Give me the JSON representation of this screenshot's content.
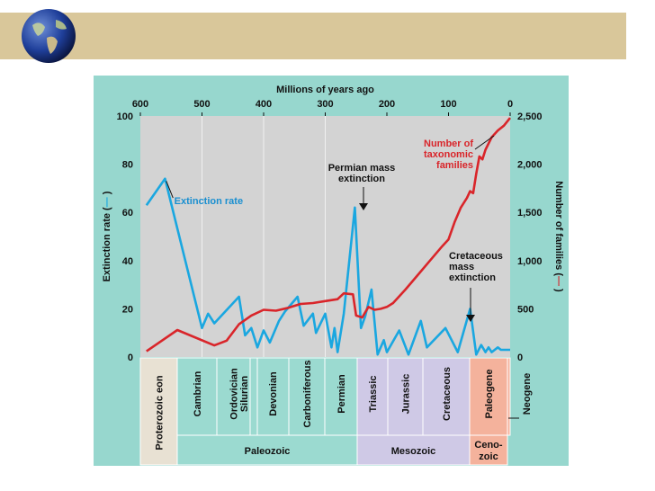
{
  "chart_data": {
    "type": "line",
    "title": "Millions of years ago",
    "x_ticks": [
      600,
      500,
      400,
      300,
      200,
      100,
      0
    ],
    "x_range": [
      600,
      0
    ],
    "ylabel_left": "Extinction rate (",
    "ylabel_right": "Number of families (",
    "ylabel_close": ")",
    "y_left_ticks": [
      100,
      80,
      60,
      40,
      20,
      0
    ],
    "y_left_range": [
      0,
      100
    ],
    "y_right_ticks": [
      "2,500",
      "2,000",
      "1,500",
      "1,000",
      "500",
      "0"
    ],
    "y_right_values": [
      2500,
      2000,
      1500,
      1000,
      500,
      0
    ],
    "y_right_range": [
      0,
      2500
    ],
    "grid": "vertical at 500, 400, 300",
    "colors": {
      "extinction": "#1aa7e0",
      "families": "#d9252a",
      "plot_bg": "#d3d3d3",
      "frame": "#97d7ce",
      "paleozoic": "#9bdad0",
      "mesozoic": "#cfc9e6",
      "cenozoic": "#f4b29c",
      "proterozoic": "#e8e1d3"
    },
    "series": [
      {
        "key": "extinction",
        "name": "Extinction rate",
        "axis": "left",
        "points": [
          [
            590,
            63
          ],
          [
            560,
            74
          ],
          [
            500,
            12
          ],
          [
            490,
            18
          ],
          [
            480,
            14
          ],
          [
            440,
            25
          ],
          [
            430,
            9
          ],
          [
            420,
            12
          ],
          [
            410,
            4
          ],
          [
            400,
            11
          ],
          [
            390,
            6
          ],
          [
            375,
            15
          ],
          [
            365,
            19
          ],
          [
            345,
            25
          ],
          [
            335,
            13
          ],
          [
            320,
            18
          ],
          [
            315,
            10
          ],
          [
            300,
            18
          ],
          [
            290,
            4
          ],
          [
            285,
            12
          ],
          [
            280,
            2
          ],
          [
            270,
            18
          ],
          [
            252,
            62
          ],
          [
            242,
            12
          ],
          [
            235,
            17
          ],
          [
            225,
            28
          ],
          [
            215,
            1
          ],
          [
            205,
            7
          ],
          [
            200,
            2
          ],
          [
            180,
            11
          ],
          [
            165,
            1
          ],
          [
            145,
            15
          ],
          [
            135,
            4
          ],
          [
            105,
            12
          ],
          [
            85,
            2
          ],
          [
            65,
            20
          ],
          [
            55,
            1
          ],
          [
            47,
            5
          ],
          [
            40,
            2
          ],
          [
            35,
            4
          ],
          [
            30,
            2
          ],
          [
            20,
            4
          ],
          [
            15,
            3
          ],
          [
            0,
            3
          ]
        ]
      },
      {
        "key": "families",
        "name": "Number of taxonomic families",
        "axis": "right",
        "points": [
          [
            590,
            60
          ],
          [
            540,
            280
          ],
          [
            480,
            120
          ],
          [
            460,
            170
          ],
          [
            440,
            340
          ],
          [
            420,
            430
          ],
          [
            400,
            490
          ],
          [
            380,
            480
          ],
          [
            360,
            510
          ],
          [
            340,
            550
          ],
          [
            320,
            560
          ],
          [
            300,
            580
          ],
          [
            280,
            600
          ],
          [
            270,
            660
          ],
          [
            255,
            650
          ],
          [
            250,
            430
          ],
          [
            240,
            410
          ],
          [
            230,
            520
          ],
          [
            220,
            490
          ],
          [
            210,
            500
          ],
          [
            200,
            520
          ],
          [
            190,
            560
          ],
          [
            170,
            700
          ],
          [
            150,
            850
          ],
          [
            130,
            1000
          ],
          [
            110,
            1150
          ],
          [
            100,
            1220
          ],
          [
            90,
            1400
          ],
          [
            80,
            1550
          ],
          [
            70,
            1650
          ],
          [
            65,
            1720
          ],
          [
            60,
            1700
          ],
          [
            55,
            1900
          ],
          [
            50,
            2080
          ],
          [
            45,
            2050
          ],
          [
            40,
            2150
          ],
          [
            30,
            2280
          ],
          [
            20,
            2350
          ],
          [
            10,
            2400
          ],
          [
            0,
            2480
          ]
        ]
      }
    ],
    "annotations": {
      "extinction_rate": "Extinction rate",
      "families_lines": [
        "Number of",
        "taxonomic",
        "families"
      ],
      "permian_lines": [
        "Permian mass",
        "extinction"
      ],
      "cretaceous_lines": [
        "Cretaceous",
        "mass",
        "extinction"
      ]
    },
    "periods": [
      {
        "label": "Proterozoic eon",
        "era": "proterozoic"
      },
      {
        "label": "Cambrian",
        "era": "paleozoic"
      },
      {
        "label": "Ordovician",
        "era": "paleozoic"
      },
      {
        "label": "Silurian",
        "era": "paleozoic"
      },
      {
        "label": "Devonian",
        "era": "paleozoic"
      },
      {
        "label": "Carboniferous",
        "era": "paleozoic"
      },
      {
        "label": "Permian",
        "era": "paleozoic"
      },
      {
        "label": "Triassic",
        "era": "mesozoic"
      },
      {
        "label": "Jurassic",
        "era": "mesozoic"
      },
      {
        "label": "Cretaceous",
        "era": "mesozoic"
      },
      {
        "label": "Paleogene",
        "era": "cenozoic"
      },
      {
        "label": "Neogene",
        "era": "cenozoic"
      }
    ],
    "eras": [
      {
        "label": "Paleozoic",
        "era": "paleozoic"
      },
      {
        "label": "Mesozoic",
        "era": "mesozoic"
      },
      {
        "label": "Ceno-",
        "label2": "zoic",
        "era": "cenozoic"
      }
    ]
  }
}
